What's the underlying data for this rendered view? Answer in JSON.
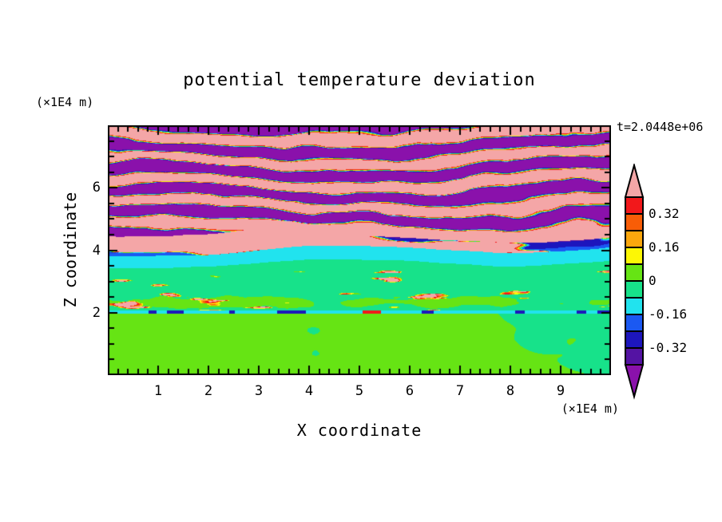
{
  "chart_data": {
    "type": "heatmap",
    "title": "potential temperature deviation",
    "xlabel": "X coordinate",
    "ylabel": "Z coordinate",
    "x_unit_label": "(×1E4 m)",
    "y_unit_label": "(×1E4 m)",
    "time_annotation": "t=2.0448e+06",
    "xlim": [
      0,
      10
    ],
    "ylim": [
      0,
      8
    ],
    "x_ticks": [
      1,
      2,
      3,
      4,
      5,
      6,
      7,
      8,
      9
    ],
    "y_ticks": [
      2,
      4,
      6
    ],
    "x_minor_step": 0.2,
    "y_minor_step": 0.5,
    "grid": false,
    "colorbar": {
      "position": "right",
      "tick_labels": [
        "0.32",
        "0.16",
        "0",
        "-0.16",
        "-0.32"
      ],
      "tick_values": [
        0.32,
        0.16,
        0,
        -0.16,
        -0.32
      ],
      "levels": [
        -0.4,
        -0.32,
        -0.24,
        -0.16,
        -0.08,
        0,
        0.08,
        0.16,
        0.24,
        0.32,
        0.4
      ],
      "colors_low_to_high": [
        "#8a11ab",
        "#5413a3",
        "#1d16bd",
        "#1b59f2",
        "#21e3ee",
        "#17e28a",
        "#66e414",
        "#fdf705",
        "#fba70d",
        "#f85d07",
        "#f2181b",
        "#f4a6a7"
      ],
      "arrow_note": "triangular end caps mark values beyond -0.40 (purple) and +0.40 (pink)"
    },
    "field_description": [
      {
        "z_range": [
          4.6,
          8.0
        ],
        "pattern": "alternating wavy horizontal layers beyond ±0.40: pink (>0.40) and purple (<-0.40) bands with thin rainbow contour fringes at their edges and occasional yellow/red and cyan/blue blobs"
      },
      {
        "z_range": [
          4.3,
          4.6
        ],
        "pattern": "continuous pink layer (>0.40)"
      },
      {
        "z_range": [
          4.0,
          4.3
        ],
        "pattern": "navy band (about -0.28 to -0.33) crossed by diagonal pink tongues outlined in red/yellow"
      },
      {
        "z_range": [
          3.56,
          4.0
        ],
        "pattern": "uniform cyan layer (about -0.12)"
      },
      {
        "z_range": [
          2.05,
          3.56
        ],
        "pattern": "spring-green layer (about -0.04) with chartreuse streaks and sparse thin yellow-orange-red wisps"
      },
      {
        "z_range": [
          1.97,
          2.05
        ],
        "pattern": "thin horizontal mixing line: cyan with navy/blue dashes and small red/orange spots"
      },
      {
        "z_range": [
          0.0,
          1.97
        ],
        "pattern": "chartreuse layer (about +0.05) with large rounded spring-green blobs"
      }
    ]
  }
}
